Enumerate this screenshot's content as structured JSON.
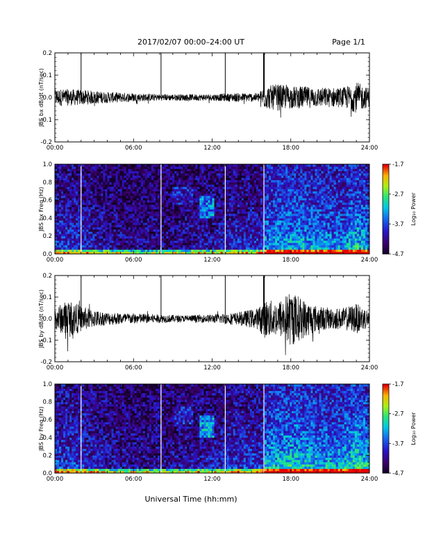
{
  "header": {
    "date_range": "2017/02/07   00:00–24:00 UT",
    "page": "Page 1/1"
  },
  "x_title": "Universal Time (hh:mm)",
  "chart_data": [
    {
      "type": "line",
      "ylabel": "JBS bx dB/dt (nT/sec)",
      "xlim": [
        0,
        24
      ],
      "ylim": [
        -0.2,
        0.2
      ],
      "x_ticks": [
        "00:00",
        "06:00",
        "12:00",
        "18:00",
        "24:00"
      ],
      "y_ticks": [
        "-0.2",
        "-0.1",
        "0.0",
        "0.1",
        "0.2"
      ],
      "spikes_hours": [
        2.0,
        8.1,
        13.0,
        15.95
      ],
      "envelope": {
        "hours": [
          0,
          2,
          4,
          6,
          8,
          10,
          12,
          14,
          15.5,
          16,
          17,
          18,
          19,
          20,
          21,
          22,
          23,
          24
        ],
        "amplitude": [
          0.04,
          0.035,
          0.025,
          0.02,
          0.015,
          0.015,
          0.015,
          0.02,
          0.02,
          0.05,
          0.06,
          0.05,
          0.05,
          0.045,
          0.045,
          0.045,
          0.07,
          0.04
        ]
      }
    },
    {
      "type": "heatmap",
      "ylabel": "JBS bx Freq (Hz)",
      "xlim": [
        0,
        24
      ],
      "ylim": [
        0.0,
        1.0
      ],
      "x_ticks": [
        "00:00",
        "06:00",
        "12:00",
        "18:00",
        "24:00"
      ],
      "y_ticks": [
        "0.0",
        "0.2",
        "0.4",
        "0.6",
        "0.8",
        "1.0"
      ],
      "colorbar": {
        "label": "Log₁₀ Power",
        "ticks": [
          "-1.7",
          "-2.7",
          "-3.7",
          "-4.7"
        ],
        "min": -4.7,
        "max": -1.7
      },
      "gaps_hours": [
        2.0,
        8.1,
        13.0,
        15.95
      ]
    },
    {
      "type": "line",
      "ylabel": "JBS by dB/dt (nT/sec)",
      "xlim": [
        0,
        24
      ],
      "ylim": [
        -0.2,
        0.2
      ],
      "x_ticks": [
        "00:00",
        "06:00",
        "12:00",
        "18:00",
        "24:00"
      ],
      "y_ticks": [
        "-0.2",
        "-0.1",
        "0.0",
        "0.1",
        "0.2"
      ],
      "spikes_hours": [
        2.0,
        8.1,
        13.0,
        15.95
      ],
      "envelope": {
        "hours": [
          0,
          1,
          2,
          3,
          4,
          6,
          8,
          10,
          12,
          14,
          15.5,
          16,
          17,
          18,
          19,
          20,
          21,
          22,
          23,
          24
        ],
        "amplitude": [
          0.05,
          0.09,
          0.06,
          0.04,
          0.03,
          0.025,
          0.02,
          0.015,
          0.02,
          0.03,
          0.05,
          0.09,
          0.08,
          0.13,
          0.09,
          0.06,
          0.05,
          0.05,
          0.07,
          0.04
        ]
      }
    },
    {
      "type": "heatmap",
      "ylabel": "JBS by Freq (Hz)",
      "xlim": [
        0,
        24
      ],
      "ylim": [
        0.0,
        1.0
      ],
      "x_ticks": [
        "00:00",
        "06:00",
        "12:00",
        "18:00",
        "24:00"
      ],
      "y_ticks": [
        "0.0",
        "0.2",
        "0.4",
        "0.6",
        "0.8",
        "1.0"
      ],
      "colorbar": {
        "label": "Log₁₀ Power",
        "ticks": [
          "-1.7",
          "-2.7",
          "-3.7",
          "-4.7"
        ],
        "min": -4.7,
        "max": -1.7
      },
      "gaps_hours": [
        2.0,
        8.1,
        13.0,
        15.95
      ]
    }
  ]
}
